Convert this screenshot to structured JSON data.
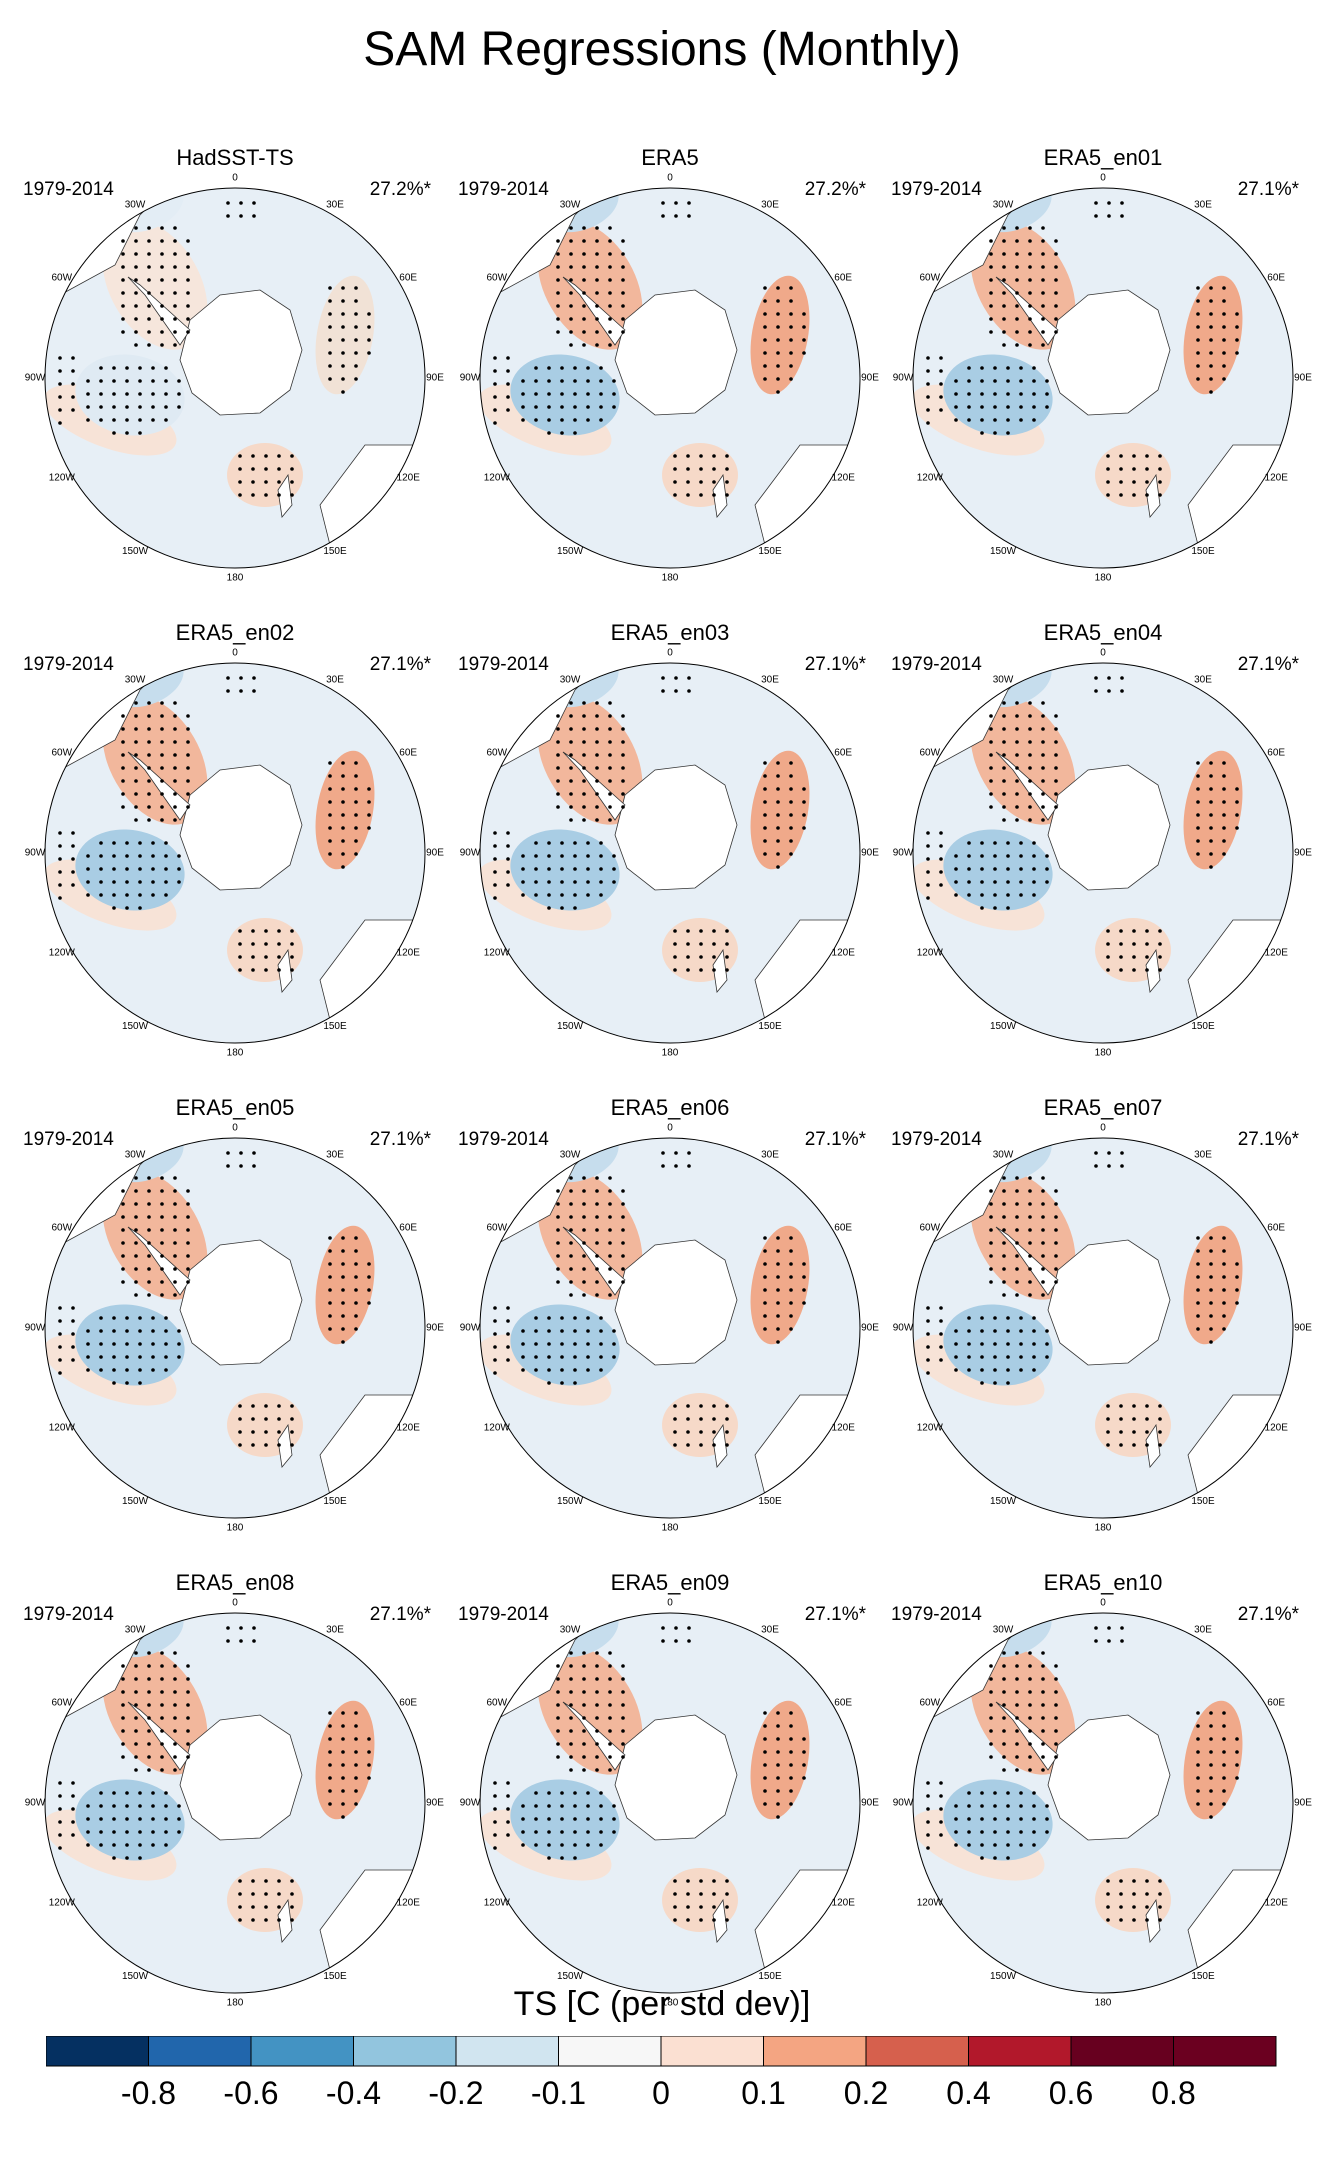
{
  "title": "SAM Regressions (Monthly)",
  "chart_data": {
    "type": "map",
    "projection": "south-polar-stereographic",
    "variable": "TS",
    "period": "1979-2014",
    "colorbar": {
      "title": "TS [C (per std dev)]",
      "levels": [
        "-0.8",
        "-0.6",
        "-0.4",
        "-0.2",
        "-0.1",
        "0",
        "0.1",
        "0.2",
        "0.4",
        "0.6",
        "0.8"
      ],
      "colors": [
        "#053061",
        "#2166ac",
        "#4393c3",
        "#92c5de",
        "#d1e5f0",
        "#f7f7f7",
        "#fbe0d2",
        "#f4a582",
        "#d6604d",
        "#b2182b",
        "#67001f",
        "#6b0020"
      ]
    },
    "longitude_labels": [
      "0",
      "30E",
      "60E",
      "90E",
      "120E",
      "150E",
      "180",
      "150W",
      "120W",
      "90W",
      "60W",
      "30W"
    ],
    "panels": [
      {
        "name": "HadSST-TS",
        "years": "1979-2014",
        "variance": "27.2%*"
      },
      {
        "name": "ERA5",
        "years": "1979-2014",
        "variance": "27.2%*"
      },
      {
        "name": "ERA5_en01",
        "years": "1979-2014",
        "variance": "27.1%*"
      },
      {
        "name": "ERA5_en02",
        "years": "1979-2014",
        "variance": "27.1%*"
      },
      {
        "name": "ERA5_en03",
        "years": "1979-2014",
        "variance": "27.1%*"
      },
      {
        "name": "ERA5_en04",
        "years": "1979-2014",
        "variance": "27.1%*"
      },
      {
        "name": "ERA5_en05",
        "years": "1979-2014",
        "variance": "27.1%*"
      },
      {
        "name": "ERA5_en06",
        "years": "1979-2014",
        "variance": "27.1%*"
      },
      {
        "name": "ERA5_en07",
        "years": "1979-2014",
        "variance": "27.1%*"
      },
      {
        "name": "ERA5_en08",
        "years": "1979-2014",
        "variance": "27.1%*"
      },
      {
        "name": "ERA5_en09",
        "years": "1979-2014",
        "variance": "27.1%*"
      },
      {
        "name": "ERA5_en10",
        "years": "1979-2014",
        "variance": "27.1%*"
      }
    ]
  }
}
